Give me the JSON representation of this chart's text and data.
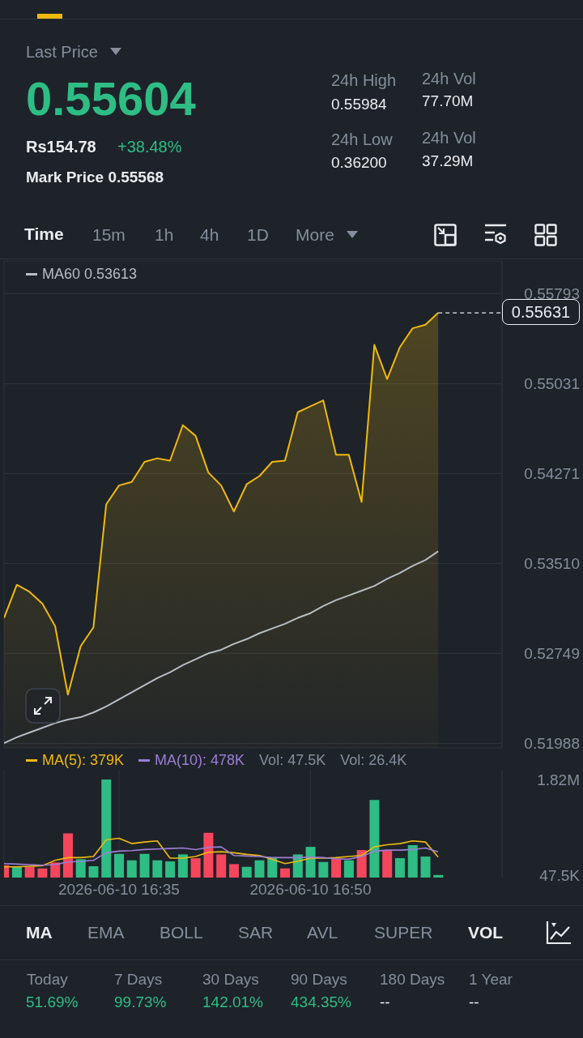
{
  "chart_data": [
    {
      "type": "area",
      "legend": "top left",
      "grid": true,
      "tick_labels": "y",
      "x": [
        "2026-06-10T16:26",
        "2026-06-10T16:27",
        "2026-06-10T16:28",
        "2026-06-10T16:29",
        "2026-06-10T16:30",
        "2026-06-10T16:31",
        "2026-06-10T16:32",
        "2026-06-10T16:33",
        "2026-06-10T16:34",
        "2026-06-10T16:35",
        "2026-06-10T16:36",
        "2026-06-10T16:37",
        "2026-06-10T16:38",
        "2026-06-10T16:39",
        "2026-06-10T16:40",
        "2026-06-10T16:41",
        "2026-06-10T16:42",
        "2026-06-10T16:43",
        "2026-06-10T16:44",
        "2026-06-10T16:45",
        "2026-06-10T16:46",
        "2026-06-10T16:47",
        "2026-06-10T16:48",
        "2026-06-10T16:49",
        "2026-06-10T16:50",
        "2026-06-10T16:51",
        "2026-06-10T16:52",
        "2026-06-10T16:53",
        "2026-06-10T16:54",
        "2026-06-10T16:55",
        "2026-06-10T16:56",
        "2026-06-10T16:57",
        "2026-06-10T16:58",
        "2026-06-10T16:59",
        "2026-06-10T17:00"
      ],
      "xlim": [
        "2026-06-10T16:26",
        "2026-06-10T17:05"
      ],
      "xticks": [
        {
          "value": "2026-06-10T16:35",
          "label": null
        },
        {
          "value": "2026-06-10T16:50",
          "label": null
        }
      ],
      "ylim": [
        0.5195,
        0.5607
      ],
      "yticks": [
        0.51988,
        0.52749,
        {
          "value": 0.5351,
          "label": "0.53510"
        },
        0.54271,
        0.55031,
        0.55793
      ],
      "ref_lines": [
        {
          "axis": "y",
          "value": 0.55631,
          "label": "0.55631",
          "line_style": "dashed",
          "color": "#eaecef"
        }
      ],
      "annotations": [
        "Last Price",
        "0.55604",
        "Rs154.78",
        "+38.48%",
        "Mark Price 0.55568",
        "24h High",
        "0.55984",
        "24h Vol",
        "77.70M",
        "24h Low",
        "0.36200",
        "24h Vol",
        "37.29M",
        "Time",
        "15m",
        "1h",
        "4h",
        "1D",
        "More"
      ],
      "series": [
        {
          "color": "#f0b90b",
          "values": [
            0.5305,
            0.5333,
            0.5327,
            0.5317,
            0.5298,
            0.524,
            0.5281,
            0.5297,
            0.5401,
            0.5417,
            0.542,
            0.5437,
            0.544,
            0.5438,
            0.5468,
            0.5459,
            0.5428,
            0.5417,
            0.5395,
            0.5418,
            0.5425,
            0.5437,
            0.5438,
            0.5479,
            0.5484,
            0.5489,
            0.5443,
            0.5443,
            0.5403,
            0.5536,
            0.5507,
            0.5534,
            0.555,
            0.5553,
            0.55631
          ]
        },
        {
          "type": "line",
          "name": "MA60 0.53613",
          "color": "#b7bdc6",
          "values": [
            0.5199,
            0.5204,
            0.5208,
            0.5212,
            0.5216,
            0.5219,
            0.5221,
            0.5225,
            0.523,
            0.5236,
            0.5242,
            0.5248,
            0.5254,
            0.5259,
            0.5265,
            0.527,
            0.5275,
            0.5278,
            0.5283,
            0.5287,
            0.5292,
            0.5296,
            0.53,
            0.5305,
            0.5309,
            0.5315,
            0.532,
            0.5324,
            0.5328,
            0.5332,
            0.5338,
            0.5343,
            0.5349,
            0.5354,
            0.53613
          ]
        }
      ]
    },
    {
      "type": "bar",
      "legend": "top left",
      "grid": "x",
      "x": [
        "2026-06-10T16:26",
        "2026-06-10T16:27",
        "2026-06-10T16:28",
        "2026-06-10T16:29",
        "2026-06-10T16:30",
        "2026-06-10T16:31",
        "2026-06-10T16:32",
        "2026-06-10T16:33",
        "2026-06-10T16:34",
        "2026-06-10T16:35",
        "2026-06-10T16:36",
        "2026-06-10T16:37",
        "2026-06-10T16:38",
        "2026-06-10T16:39",
        "2026-06-10T16:40",
        "2026-06-10T16:41",
        "2026-06-10T16:42",
        "2026-06-10T16:43",
        "2026-06-10T16:44",
        "2026-06-10T16:45",
        "2026-06-10T16:46",
        "2026-06-10T16:47",
        "2026-06-10T16:48",
        "2026-06-10T16:49",
        "2026-06-10T16:50",
        "2026-06-10T16:51",
        "2026-06-10T16:52",
        "2026-06-10T16:53",
        "2026-06-10T16:54",
        "2026-06-10T16:55",
        "2026-06-10T16:56",
        "2026-06-10T16:57",
        "2026-06-10T16:58",
        "2026-06-10T16:59",
        "2026-06-10T17:00"
      ],
      "xlim": [
        "2026-06-10T16:26",
        "2026-06-10T17:05"
      ],
      "xticks": [
        {
          "value": "2026-06-10T16:35",
          "label": "2026-06-10 16:35"
        },
        {
          "value": "2026-06-10T16:50",
          "label": "2026-06-10 16:50"
        }
      ],
      "ylim": [
        0,
        2000000
      ],
      "yticks": [
        {
          "value": 47500,
          "label": "47.5K"
        },
        {
          "value": 1820000,
          "label": "1.82M"
        }
      ],
      "annotations": [
        "Vol: 47.5K",
        "Vol: 26.4K",
        "MA",
        "EMA",
        "BOLL",
        "SAR",
        "AVL",
        "SUPER",
        "VOL",
        "Today",
        "51.69%",
        "7 Days",
        "99.73%",
        "30 Days",
        "142.01%",
        "90 Days",
        "434.35%",
        "180 Days",
        "--",
        "1 Year",
        "--"
      ],
      "series": [
        {
          "colors": [
            "#f6465d",
            "#2ebd85",
            "#f6465d",
            "#f6465d",
            "#f6465d",
            "#f6465d",
            "#2ebd85",
            "#2ebd85",
            "#2ebd85",
            "#2ebd85",
            "#2ebd85",
            "#2ebd85",
            "#2ebd85",
            "#2ebd85",
            "#2ebd85",
            "#f6465d",
            "#f6465d",
            "#f6465d",
            "#f6465d",
            "#2ebd85",
            "#2ebd85",
            "#2ebd85",
            "#f6465d",
            "#2ebd85",
            "#2ebd85",
            "#2ebd85",
            "#f6465d",
            "#2ebd85",
            "#f6465d",
            "#2ebd85",
            "#f6465d",
            "#2ebd85",
            "#2ebd85",
            "#2ebd85",
            "#2ebd85"
          ],
          "values": [
            230000,
            200000,
            200000,
            170000,
            280000,
            820000,
            340000,
            210000,
            1820000,
            440000,
            320000,
            440000,
            320000,
            300000,
            430000,
            360000,
            830000,
            430000,
            250000,
            200000,
            320000,
            360000,
            170000,
            430000,
            570000,
            290000,
            350000,
            320000,
            510000,
            1440000,
            500000,
            360000,
            600000,
            390000,
            47500
          ]
        },
        {
          "type": "line",
          "name": "MA(5): 379K",
          "color": "#f0b90b",
          "values": [
            200000,
            200000,
            210000,
            220000,
            320000,
            370000,
            370000,
            390000,
            700000,
            730000,
            630000,
            660000,
            680000,
            360000,
            360000,
            390000,
            470000,
            480000,
            460000,
            430000,
            410000,
            340000,
            260000,
            300000,
            360000,
            360000,
            370000,
            390000,
            410000,
            570000,
            610000,
            630000,
            680000,
            660000,
            379000
          ]
        },
        {
          "type": "line",
          "name": "MA(10): 478K",
          "color": "#9c7ed6",
          "values": [
            260000,
            250000,
            240000,
            230000,
            240000,
            290000,
            300000,
            320000,
            460000,
            490000,
            500000,
            520000,
            530000,
            540000,
            550000,
            520000,
            560000,
            570000,
            410000,
            400000,
            390000,
            370000,
            370000,
            370000,
            380000,
            370000,
            350000,
            340000,
            390000,
            490000,
            510000,
            510000,
            520000,
            550000,
            478000
          ]
        }
      ]
    }
  ]
}
